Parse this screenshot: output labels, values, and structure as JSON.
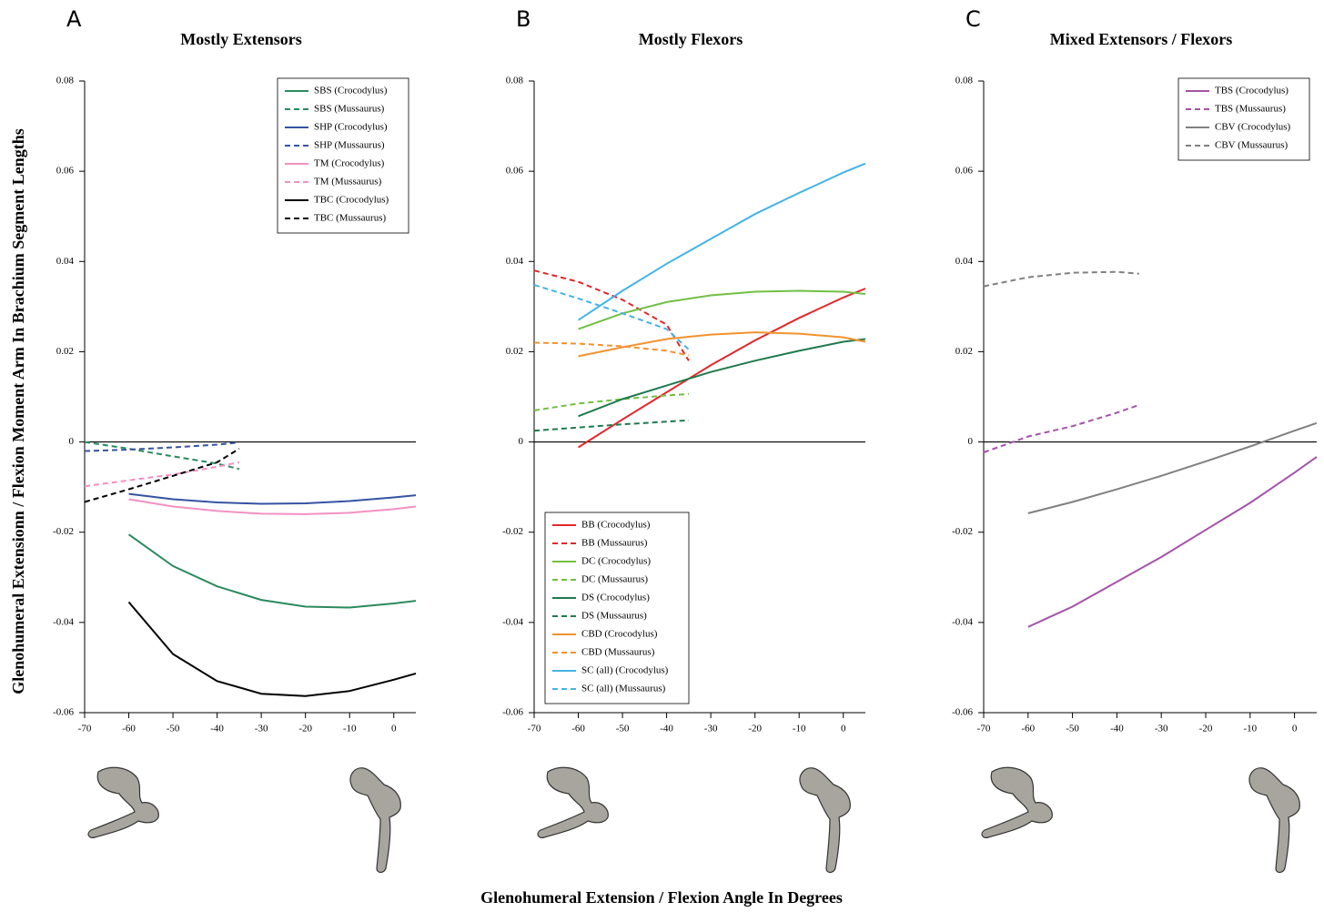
{
  "ylabel": "Glenohumeral Extensionn / Flexion Moment Arm In Brachium Segment Lengths",
  "xlabel": "Glenohumeral Extension / Flexion Angle In Degrees",
  "chart_data": [
    {
      "type": "line",
      "panel": "A",
      "title": "Mostly Extensors",
      "xlim": [
        -70,
        5
      ],
      "ylim": [
        -0.06,
        0.08
      ],
      "xticks": [
        -70,
        -60,
        -50,
        -40,
        -30,
        -20,
        -10,
        0
      ],
      "yticks": [
        -0.06,
        -0.04,
        -0.02,
        0,
        0.02,
        0.04,
        0.06,
        0.08
      ],
      "legend": "upper right",
      "series": [
        {
          "name": "SBS (Crocodylus)",
          "color": "#2a8a5e",
          "dashed": false,
          "x": [
            -60,
            -50,
            -40,
            -30,
            -20,
            -10,
            0,
            5
          ],
          "values": [
            -0.0205,
            -0.0275,
            -0.032,
            -0.035,
            -0.0365,
            -0.0367,
            -0.0358,
            -0.0352
          ]
        },
        {
          "name": "SBS (Mussaurus)",
          "color": "#2a8a5e",
          "dashed": true,
          "x": [
            -70,
            -60,
            -50,
            -40,
            -35
          ],
          "values": [
            0,
            -0.0015,
            -0.0032,
            -0.0048,
            -0.006
          ]
        },
        {
          "name": "SHP (Crocodylus)",
          "color": "#3553a3",
          "dashed": false,
          "x": [
            -60,
            -50,
            -40,
            -30,
            -20,
            -10,
            0,
            5
          ],
          "values": [
            -0.0115,
            -0.0127,
            -0.0134,
            -0.0137,
            -0.0136,
            -0.0131,
            -0.0123,
            -0.0118
          ]
        },
        {
          "name": "SHP (Mussaurus)",
          "color": "#3553a3",
          "dashed": true,
          "x": [
            -70,
            -60,
            -50,
            -40,
            -35
          ],
          "values": [
            -0.002,
            -0.0017,
            -0.0012,
            -0.0006,
            -0.0001
          ]
        },
        {
          "name": "TM (Crocodylus)",
          "color": "#f291c3",
          "dashed": false,
          "x": [
            -60,
            -50,
            -40,
            -30,
            -20,
            -10,
            0,
            5
          ],
          "values": [
            -0.0127,
            -0.0143,
            -0.0153,
            -0.0159,
            -0.016,
            -0.0157,
            -0.0149,
            -0.0143
          ]
        },
        {
          "name": "TM (Mussaurus)",
          "color": "#f291c3",
          "dashed": true,
          "x": [
            -70,
            -60,
            -50,
            -40,
            -35
          ],
          "values": [
            -0.0098,
            -0.0085,
            -0.0072,
            -0.0055,
            -0.0045
          ]
        },
        {
          "name": "TBC (Crocodylus)",
          "color": "#000000",
          "dashed": false,
          "x": [
            -60,
            -50,
            -40,
            -30,
            -20,
            -10,
            0,
            5
          ],
          "values": [
            -0.0355,
            -0.047,
            -0.053,
            -0.0558,
            -0.0563,
            -0.0552,
            -0.0527,
            -0.0513
          ]
        },
        {
          "name": "TBC (Mussaurus)",
          "color": "#000000",
          "dashed": true,
          "x": [
            -70,
            -60,
            -50,
            -40,
            -35
          ],
          "values": [
            -0.0133,
            -0.0105,
            -0.0075,
            -0.0045,
            -0.0015
          ]
        }
      ]
    },
    {
      "type": "line",
      "panel": "B",
      "title": "Mostly Flexors",
      "xlim": [
        -70,
        5
      ],
      "ylim": [
        -0.06,
        0.08
      ],
      "xticks": [
        -70,
        -60,
        -50,
        -40,
        -30,
        -20,
        -10,
        0
      ],
      "yticks": [
        -0.06,
        -0.04,
        -0.02,
        0,
        0.02,
        0.04,
        0.06,
        0.08
      ],
      "legend": "lower left",
      "series": [
        {
          "name": "BB (Crocodylus)",
          "color": "#e3262a",
          "dashed": false,
          "x": [
            -60,
            -50,
            -40,
            -30,
            -20,
            -10,
            0,
            5
          ],
          "values": [
            -0.0012,
            0.005,
            0.011,
            0.017,
            0.0225,
            0.0275,
            0.032,
            0.034
          ]
        },
        {
          "name": "BB (Mussaurus)",
          "color": "#e3262a",
          "dashed": true,
          "x": [
            -70,
            -60,
            -50,
            -40,
            -35
          ],
          "values": [
            0.038,
            0.0355,
            0.0315,
            0.026,
            0.018
          ]
        },
        {
          "name": "DC (Crocodylus)",
          "color": "#72bf44",
          "dashed": false,
          "x": [
            -60,
            -50,
            -40,
            -30,
            -20,
            -10,
            0,
            5
          ],
          "values": [
            0.025,
            0.0285,
            0.031,
            0.0325,
            0.0333,
            0.0335,
            0.0333,
            0.0328
          ]
        },
        {
          "name": "DC (Mussaurus)",
          "color": "#72bf44",
          "dashed": true,
          "x": [
            -70,
            -60,
            -50,
            -40,
            -35
          ],
          "values": [
            0.007,
            0.0085,
            0.0095,
            0.0103,
            0.0106
          ]
        },
        {
          "name": "DS (Crocodylus)",
          "color": "#1f7a4d",
          "dashed": false,
          "x": [
            -60,
            -50,
            -40,
            -30,
            -20,
            -10,
            0,
            5
          ],
          "values": [
            0.0057,
            0.0095,
            0.0125,
            0.0155,
            0.018,
            0.0202,
            0.0222,
            0.0228
          ]
        },
        {
          "name": "DS (Mussaurus)",
          "color": "#1f7a4d",
          "dashed": true,
          "x": [
            -70,
            -60,
            -50,
            -40,
            -35
          ],
          "values": [
            0.0025,
            0.0032,
            0.0039,
            0.0045,
            0.0048
          ]
        },
        {
          "name": "CBD (Crocodylus)",
          "color": "#f3922e",
          "dashed": false,
          "x": [
            -60,
            -50,
            -40,
            -30,
            -20,
            -10,
            0,
            5
          ],
          "values": [
            0.019,
            0.021,
            0.0228,
            0.0238,
            0.0243,
            0.024,
            0.0232,
            0.0222
          ]
        },
        {
          "name": "CBD (Mussaurus)",
          "color": "#f3922e",
          "dashed": true,
          "x": [
            -70,
            -60,
            -50,
            -40,
            -35
          ],
          "values": [
            0.022,
            0.0218,
            0.0212,
            0.0202,
            0.0192
          ]
        },
        {
          "name": "SC (all) (Crocodylus)",
          "color": "#44b3e6",
          "dashed": false,
          "x": [
            -60,
            -50,
            -40,
            -30,
            -20,
            -10,
            0,
            5
          ],
          "values": [
            0.027,
            0.0335,
            0.0395,
            0.045,
            0.0505,
            0.0552,
            0.0597,
            0.0617
          ]
        },
        {
          "name": "SC (all) (Mussaurus)",
          "color": "#44b3e6",
          "dashed": true,
          "x": [
            -70,
            -60,
            -50,
            -40,
            -35
          ],
          "values": [
            0.0348,
            0.0318,
            0.0285,
            0.025,
            0.0205
          ]
        }
      ]
    },
    {
      "type": "line",
      "panel": "C",
      "title": "Mixed Extensors / Flexors",
      "xlim": [
        -70,
        5
      ],
      "ylim": [
        -0.06,
        0.08
      ],
      "xticks": [
        -70,
        -60,
        -50,
        -40,
        -30,
        -20,
        -10,
        0
      ],
      "yticks": [
        -0.06,
        -0.04,
        -0.02,
        0,
        0.02,
        0.04,
        0.06,
        0.08
      ],
      "legend": "upper right",
      "series": [
        {
          "name": "TBS (Crocodylus)",
          "color": "#a352a9",
          "dashed": false,
          "x": [
            -60,
            -50,
            -40,
            -30,
            -20,
            -10,
            0,
            5
          ],
          "values": [
            -0.041,
            -0.0365,
            -0.031,
            -0.0255,
            -0.0195,
            -0.0135,
            -0.0068,
            -0.0033
          ]
        },
        {
          "name": "TBS (Mussaurus)",
          "color": "#a352a9",
          "dashed": true,
          "x": [
            -70,
            -60,
            -50,
            -40,
            -35
          ],
          "values": [
            -0.0023,
            0.0012,
            0.0035,
            0.0065,
            0.0082
          ]
        },
        {
          "name": "CBV (Crocodylus)",
          "color": "#808080",
          "dashed": false,
          "x": [
            -60,
            -50,
            -40,
            -30,
            -20,
            -10,
            0,
            5
          ],
          "values": [
            -0.0158,
            -0.0133,
            -0.0105,
            -0.0075,
            -0.0043,
            -0.001,
            0.0025,
            0.0042
          ]
        },
        {
          "name": "CBV (Mussaurus)",
          "color": "#808080",
          "dashed": true,
          "x": [
            -70,
            -60,
            -50,
            -40,
            -35
          ],
          "values": [
            0.0345,
            0.0365,
            0.0375,
            0.0377,
            0.0373
          ]
        }
      ]
    }
  ]
}
